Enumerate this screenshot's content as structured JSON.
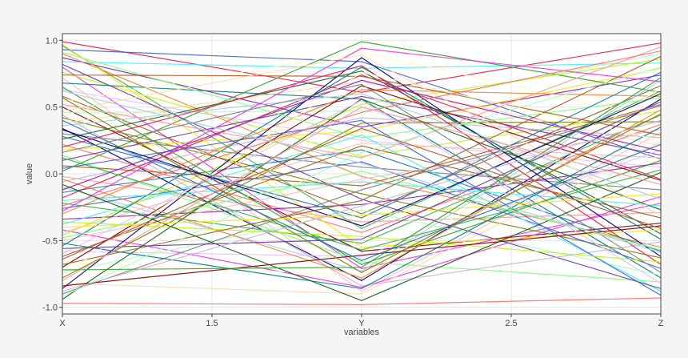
{
  "chart_data": {
    "type": "line",
    "xlabel": "variables",
    "ylabel": "value",
    "xlim": [
      1,
      3
    ],
    "ylim": [
      -1.05,
      1.05
    ],
    "x_ticks": [
      {
        "value": 1,
        "label": "X"
      },
      {
        "value": 1.5,
        "label": "1.5"
      },
      {
        "value": 2,
        "label": "Y"
      },
      {
        "value": 2.5,
        "label": "2.5"
      },
      {
        "value": 3,
        "label": "Z"
      }
    ],
    "y_ticks": [
      {
        "value": 1,
        "label": "1.0"
      },
      {
        "value": 0.5,
        "label": "0.5"
      },
      {
        "value": 0,
        "label": "0.0"
      },
      {
        "value": -0.5,
        "label": "-0.5"
      },
      {
        "value": -1,
        "label": "-1.0"
      }
    ],
    "grid": true,
    "legend": "none",
    "x": [
      1,
      2,
      3
    ],
    "series_colors": [
      "#e6194b",
      "#3cb44b",
      "#4363d8",
      "#f58231",
      "#911eb4",
      "#46f0f0",
      "#f032e6",
      "#bcf60c",
      "#fabebe",
      "#008080",
      "#e6beff",
      "#9a6324",
      "#fffac8",
      "#800000",
      "#aaffc3",
      "#808000",
      "#ffd8b1",
      "#000075",
      "#808080",
      "#1a5e1a",
      "#ff6b6b",
      "#ffe119",
      "#7fff7f",
      "#6a3d9a",
      "#b15928",
      "#33a02c",
      "#fb9a99",
      "#cab2d6",
      "#a6cee3",
      "#1f78b4"
    ],
    "series": [
      {
        "values": [
          0.99,
          0.61,
          0.98
        ]
      },
      {
        "values": [
          0.96,
          -0.41,
          0.62
        ]
      },
      {
        "values": [
          0.93,
          0.84,
          0.11
        ]
      },
      {
        "values": [
          0.9,
          -0.02,
          -0.55
        ]
      },
      {
        "values": [
          0.87,
          0.35,
          0.74
        ]
      },
      {
        "values": [
          0.84,
          0.79,
          0.83
        ]
      },
      {
        "values": [
          0.8,
          -0.71,
          -0.22
        ]
      },
      {
        "values": [
          0.76,
          0.13,
          0.47
        ]
      },
      {
        "values": [
          0.72,
          -0.88,
          0.31
        ]
      },
      {
        "values": [
          0.68,
          0.56,
          -0.78
        ]
      },
      {
        "values": [
          0.63,
          0.25,
          0.05
        ]
      },
      {
        "values": [
          0.58,
          -0.3,
          0.66
        ]
      },
      {
        "values": [
          0.54,
          0.91,
          0.42
        ]
      },
      {
        "values": [
          0.5,
          -0.58,
          -0.37
        ]
      },
      {
        "values": [
          0.46,
          0.47,
          0.9
        ]
      },
      {
        "values": [
          0.42,
          -0.15,
          -0.63
        ]
      },
      {
        "values": [
          0.38,
          0.69,
          0.21
        ]
      },
      {
        "values": [
          0.34,
          -0.8,
          0.56
        ]
      },
      {
        "values": [
          0.3,
          0.05,
          -0.12
        ]
      },
      {
        "values": [
          0.26,
          0.77,
          -0.45
        ]
      },
      {
        "values": [
          0.22,
          -0.44,
          0.37
        ]
      },
      {
        "values": [
          0.18,
          0.32,
          0.79
        ]
      },
      {
        "values": [
          0.14,
          -0.66,
          -0.81
        ]
      },
      {
        "values": [
          0.1,
          0.58,
          0.14
        ]
      },
      {
        "values": [
          0.06,
          -0.09,
          0.52
        ]
      },
      {
        "values": [
          0.02,
          0.99,
          0.61
        ]
      },
      {
        "values": [
          -0.02,
          -0.36,
          -0.29
        ]
      },
      {
        "values": [
          -0.06,
          0.42,
          0.27
        ]
      },
      {
        "values": [
          -0.1,
          -0.73,
          0.7
        ]
      },
      {
        "values": [
          -0.14,
          0.18,
          -0.58
        ]
      },
      {
        "values": [
          -0.18,
          0.74,
          -0.04
        ]
      },
      {
        "values": [
          -0.22,
          -0.52,
          0.44
        ]
      },
      {
        "values": [
          -0.26,
          0.09,
          -0.71
        ]
      },
      {
        "values": [
          -0.3,
          0.63,
          0.58
        ]
      },
      {
        "values": [
          -0.34,
          -0.23,
          0.08
        ]
      },
      {
        "values": [
          -0.38,
          0.29,
          -0.88
        ]
      },
      {
        "values": [
          -0.42,
          -0.85,
          -0.17
        ]
      },
      {
        "values": [
          -0.46,
          0.52,
          0.86
        ]
      },
      {
        "values": [
          -0.5,
          -0.04,
          0.33
        ]
      },
      {
        "values": [
          -0.54,
          0.8,
          -0.49
        ]
      },
      {
        "values": [
          -0.58,
          -0.62,
          0.18
        ]
      },
      {
        "values": [
          -0.62,
          0.21,
          -0.33
        ]
      },
      {
        "values": [
          -0.66,
          -0.76,
          0.64
        ]
      },
      {
        "values": [
          -0.7,
          0.66,
          -0.05
        ]
      },
      {
        "values": [
          -0.74,
          -0.27,
          -0.76
        ]
      },
      {
        "values": [
          -0.78,
          0.38,
          0.39
        ]
      },
      {
        "values": [
          -0.82,
          -0.9,
          0.24
        ]
      },
      {
        "values": [
          -0.86,
          0.87,
          -0.62
        ]
      },
      {
        "values": [
          -0.9,
          -0.12,
          0.51
        ]
      },
      {
        "values": [
          -0.94,
          0.56,
          -0.27
        ]
      },
      {
        "values": [
          -0.97,
          -0.98,
          -0.93
        ]
      },
      {
        "values": [
          0.97,
          -0.55,
          -0.42
        ]
      },
      {
        "values": [
          0.91,
          0.27,
          0.57
        ]
      },
      {
        "values": [
          0.82,
          -0.19,
          -0.86
        ]
      },
      {
        "values": [
          0.74,
          0.73,
          0.29
        ]
      },
      {
        "values": [
          0.65,
          -0.68,
          0.1
        ]
      },
      {
        "values": [
          0.52,
          0.12,
          0.95
        ]
      },
      {
        "values": [
          0.44,
          -0.84,
          -0.51
        ]
      },
      {
        "values": [
          0.36,
          0.6,
          -0.19
        ]
      },
      {
        "values": [
          0.28,
          -0.33,
          0.76
        ]
      },
      {
        "values": [
          0.2,
          0.81,
          -0.68
        ]
      },
      {
        "values": [
          0.12,
          -0.57,
          0.03
        ]
      },
      {
        "values": [
          0.04,
          0.4,
          -0.91
        ]
      },
      {
        "values": [
          -0.04,
          -0.78,
          0.48
        ]
      },
      {
        "values": [
          -0.12,
          0.7,
          0.17
        ]
      },
      {
        "values": [
          -0.2,
          -0.06,
          -0.24
        ]
      },
      {
        "values": [
          -0.28,
          0.94,
          0.69
        ]
      },
      {
        "values": [
          -0.36,
          -0.47,
          -0.66
        ]
      },
      {
        "values": [
          -0.44,
          0.23,
          0.12
        ]
      },
      {
        "values": [
          -0.52,
          -0.86,
          0.35
        ]
      },
      {
        "values": [
          -0.6,
          0.55,
          -0.82
        ]
      },
      {
        "values": [
          -0.68,
          -0.2,
          0.88
        ]
      },
      {
        "values": [
          -0.76,
          0.76,
          0.25
        ]
      },
      {
        "values": [
          -0.84,
          -0.61,
          -0.39
        ]
      },
      {
        "values": [
          -0.92,
          0.16,
          0.8
        ]
      },
      {
        "values": [
          0.57,
          -0.74,
          0.45
        ]
      },
      {
        "values": [
          0.47,
          0.89,
          -0.31
        ]
      },
      {
        "values": [
          0.33,
          -0.39,
          0.6
        ]
      },
      {
        "values": [
          0.16,
          0.67,
          -0.74
        ]
      },
      {
        "values": [
          -0.08,
          -0.95,
          0.01
        ]
      },
      {
        "values": [
          -0.24,
          0.46,
          0.92
        ]
      },
      {
        "values": [
          -0.4,
          -0.31,
          -0.15
        ]
      },
      {
        "values": [
          -0.48,
          0.02,
          -0.57
        ]
      },
      {
        "values": [
          -0.56,
          -0.49,
          0.54
        ]
      },
      {
        "values": [
          -0.64,
          0.34,
          -0.41
        ]
      },
      {
        "values": [
          -0.72,
          -0.7,
          0.72
        ]
      },
      {
        "values": [
          -0.8,
          0.5,
          -0.08
        ]
      },
      {
        "values": [
          -0.88,
          -0.24,
          0.4
        ]
      },
      {
        "values": [
          0.62,
          0.08,
          -0.59
        ]
      },
      {
        "values": [
          0.4,
          -0.65,
          0.22
        ]
      }
    ]
  }
}
